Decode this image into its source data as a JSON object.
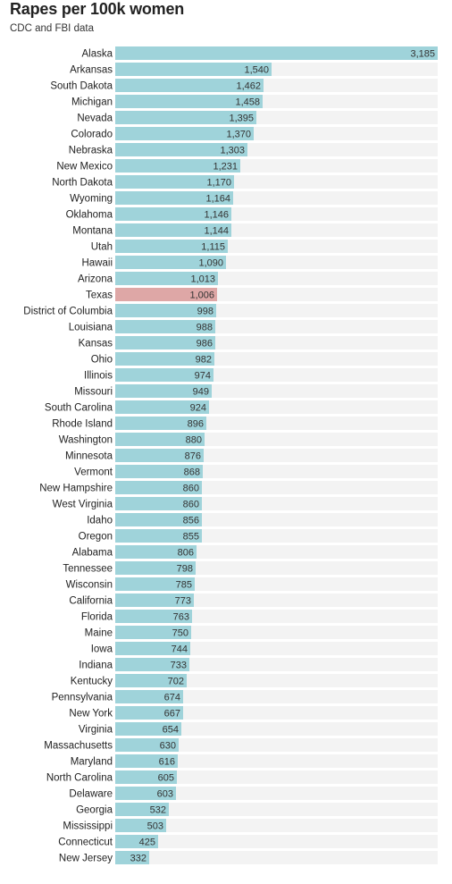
{
  "title": "Rapes per 100k women",
  "subtitle": "CDC and FBI data",
  "colors": {
    "bar": "#9fd3da",
    "highlight": "#dea7a6",
    "track": "#f3f3f3"
  },
  "chart_data": {
    "type": "bar",
    "orientation": "horizontal",
    "title": "Rapes per 100k women",
    "subtitle": "CDC and FBI data",
    "highlight": "Texas",
    "xlim": [
      0,
      3185
    ],
    "categories": [
      "Alaska",
      "Arkansas",
      "South Dakota",
      "Michigan",
      "Nevada",
      "Colorado",
      "Nebraska",
      "New Mexico",
      "North Dakota",
      "Wyoming",
      "Oklahoma",
      "Montana",
      "Utah",
      "Hawaii",
      "Arizona",
      "Texas",
      "District of Columbia",
      "Louisiana",
      "Kansas",
      "Ohio",
      "Illinois",
      "Missouri",
      "South Carolina",
      "Rhode Island",
      "Washington",
      "Minnesota",
      "Vermont",
      "New Hampshire",
      "West Virginia",
      "Idaho",
      "Oregon",
      "Alabama",
      "Tennessee",
      "Wisconsin",
      "California",
      "Florida",
      "Maine",
      "Iowa",
      "Indiana",
      "Kentucky",
      "Pennsylvania",
      "New York",
      "Virginia",
      "Massachusetts",
      "Maryland",
      "North Carolina",
      "Delaware",
      "Georgia",
      "Mississippi",
      "Connecticut",
      "New Jersey"
    ],
    "values": [
      3185,
      1540,
      1462,
      1458,
      1395,
      1370,
      1303,
      1231,
      1170,
      1164,
      1146,
      1144,
      1115,
      1090,
      1013,
      1006,
      998,
      988,
      986,
      982,
      974,
      949,
      924,
      896,
      880,
      876,
      868,
      860,
      860,
      856,
      855,
      806,
      798,
      785,
      773,
      763,
      750,
      744,
      733,
      702,
      674,
      667,
      654,
      630,
      616,
      605,
      603,
      532,
      503,
      425,
      332
    ],
    "labels": [
      "3,185",
      "1,540",
      "1,462",
      "1,458",
      "1,395",
      "1,370",
      "1,303",
      "1,231",
      "1,170",
      "1,164",
      "1,146",
      "1,144",
      "1,115",
      "1,090",
      "1,013",
      "1,006",
      "998",
      "988",
      "986",
      "982",
      "974",
      "949",
      "924",
      "896",
      "880",
      "876",
      "868",
      "860",
      "860",
      "856",
      "855",
      "806",
      "798",
      "785",
      "773",
      "763",
      "750",
      "744",
      "733",
      "702",
      "674",
      "667",
      "654",
      "630",
      "616",
      "605",
      "603",
      "532",
      "503",
      "425",
      "332"
    ]
  }
}
